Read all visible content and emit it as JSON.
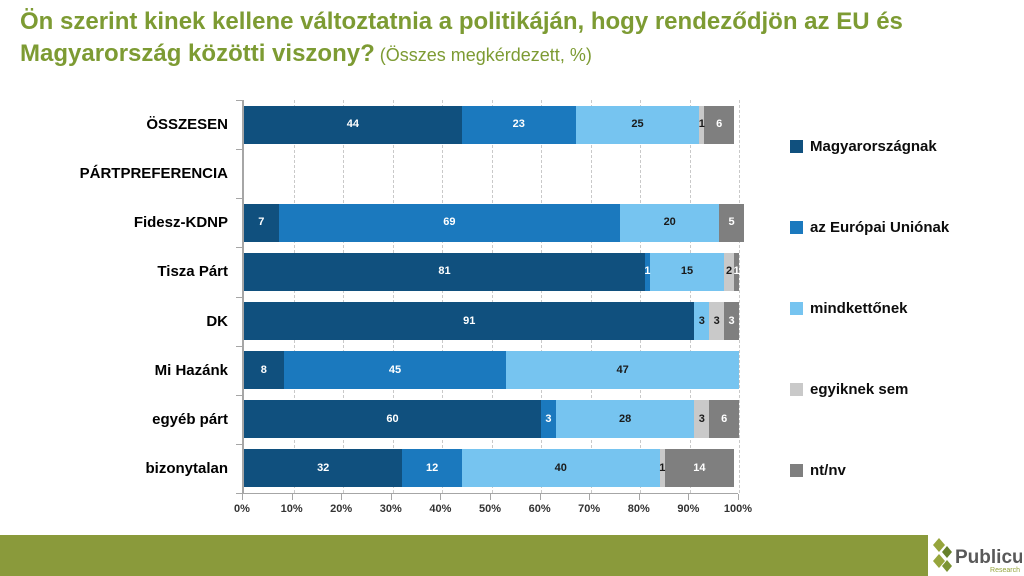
{
  "title": {
    "main": "Ön szerint kinek kellene változtatnia a politikáján, hogy rendeződjön az EU és Magyarország közötti viszony?",
    "suffix": " (Összes megkérdezett, %)"
  },
  "chart_data": {
    "type": "bar",
    "orientation": "horizontal",
    "stacked": true,
    "grid": "vertical-dashed",
    "legend_position": "right",
    "xlim": [
      0,
      100
    ],
    "x_ticks": [
      "0%",
      "10%",
      "20%",
      "30%",
      "40%",
      "50%",
      "60%",
      "70%",
      "80%",
      "90%",
      "100%"
    ],
    "categories": [
      "ÖSSZESEN",
      "PÁRTPREFERENCIA",
      "Fidesz-KDNP",
      "Tisza Párt",
      "DK",
      "Mi Hazánk",
      "egyéb párt",
      "bizonytalan"
    ],
    "series": [
      {
        "name": "Magyarországnak",
        "color": "#10507E",
        "label_color": "#FFFFFF",
        "values": [
          44,
          null,
          7,
          81,
          91,
          8,
          60,
          32
        ]
      },
      {
        "name": "az Európai Uniónak",
        "color": "#1B79BE",
        "label_color": "#FFFFFF",
        "values": [
          23,
          null,
          69,
          1,
          0,
          45,
          3,
          12
        ]
      },
      {
        "name": "mindkettőnek",
        "color": "#76C4F0",
        "label_color": "#1A1A1A",
        "values": [
          25,
          null,
          20,
          15,
          3,
          47,
          28,
          40
        ]
      },
      {
        "name": "egyiknek sem",
        "color": "#C9C9C9",
        "label_color": "#1A1A1A",
        "values": [
          1,
          null,
          0,
          2,
          3,
          0,
          3,
          1
        ]
      },
      {
        "name": "nt/nv",
        "color": "#7F7F7F",
        "label_color": "#FFFFFF",
        "values": [
          6,
          null,
          5,
          1,
          3,
          0,
          6,
          14
        ]
      }
    ]
  },
  "footer": {
    "brand": "Publicus",
    "brand_sub": "Research",
    "bar_color": "#8A9A3B",
    "logo_greens": [
      "#96A53C",
      "#96A53C",
      "#66802B",
      "#7C9434"
    ]
  },
  "colors": {
    "title_green": "#7D9B33",
    "axis_gray": "#A6A6A6"
  }
}
